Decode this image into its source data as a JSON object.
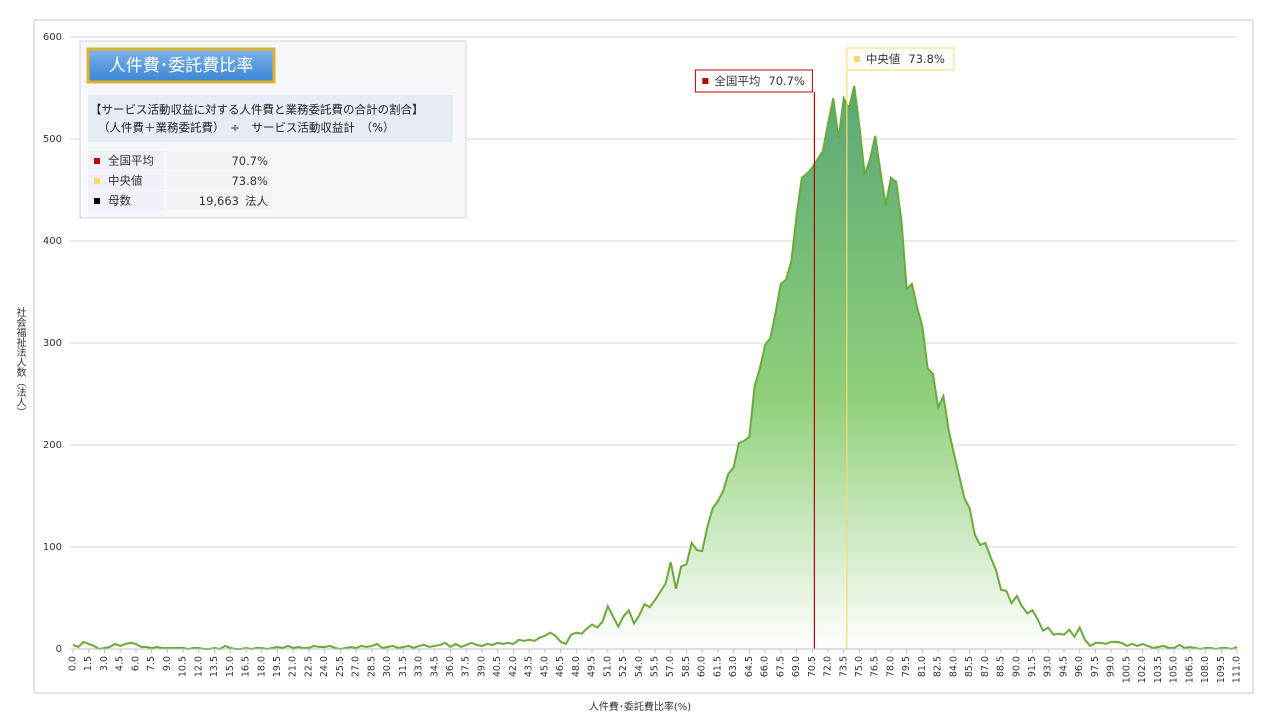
{
  "chart_data": {
    "type": "area",
    "xlabel": "人件費･委託費比率(%)",
    "ylabel": "社会福祉法人数（法人）",
    "color": "#6aaa3a",
    "grid": true,
    "xlim": [
      0,
      111
    ],
    "ylim": [
      0,
      600
    ],
    "yticks": [
      0,
      100,
      200,
      300,
      400,
      500,
      600
    ],
    "xticks": [
      {
        "value": 0,
        "label": "0.0"
      },
      1.5,
      {
        "value": 3,
        "label": "3.0"
      },
      4.5,
      {
        "value": 6,
        "label": "6.0"
      },
      7.5,
      {
        "value": 9,
        "label": "9.0"
      },
      10.5,
      {
        "value": 12,
        "label": "12.0"
      },
      13.5,
      {
        "value": 15,
        "label": "15.0"
      },
      16.5,
      {
        "value": 18,
        "label": "18.0"
      },
      19.5,
      {
        "value": 21,
        "label": "21.0"
      },
      22.5,
      {
        "value": 24,
        "label": "24.0"
      },
      25.5,
      {
        "value": 27,
        "label": "27.0"
      },
      28.5,
      {
        "value": 30,
        "label": "30.0"
      },
      31.5,
      {
        "value": 33,
        "label": "33.0"
      },
      34.5,
      {
        "value": 36,
        "label": "36.0"
      },
      37.5,
      {
        "value": 39,
        "label": "39.0"
      },
      40.5,
      {
        "value": 42,
        "label": "42.0"
      },
      43.5,
      {
        "value": 45,
        "label": "45.0"
      },
      46.5,
      {
        "value": 48,
        "label": "48.0"
      },
      49.5,
      {
        "value": 51,
        "label": "51.0"
      },
      52.5,
      {
        "value": 54,
        "label": "54.0"
      },
      55.5,
      {
        "value": 57,
        "label": "57.0"
      },
      58.5,
      {
        "value": 60,
        "label": "60.0"
      },
      61.5,
      {
        "value": 63,
        "label": "63.0"
      },
      64.5,
      {
        "value": 66,
        "label": "66.0"
      },
      67.5,
      {
        "value": 69,
        "label": "69.0"
      },
      70.5,
      {
        "value": 72,
        "label": "72.0"
      },
      73.5,
      {
        "value": 75,
        "label": "75.0"
      },
      76.5,
      {
        "value": 78,
        "label": "78.0"
      },
      79.5,
      {
        "value": 81,
        "label": "81.0"
      },
      82.5,
      {
        "value": 84,
        "label": "84.0"
      },
      85.5,
      {
        "value": 87,
        "label": "87.0"
      },
      88.5,
      {
        "value": 90,
        "label": "90.0"
      },
      91.5,
      {
        "value": 93,
        "label": "93.0"
      },
      94.5,
      {
        "value": 96,
        "label": "96.0"
      },
      97.5,
      {
        "value": 99,
        "label": "99.0"
      },
      100.5,
      {
        "value": 102,
        "label": "102.0"
      },
      103.5,
      {
        "value": 105,
        "label": "105.0"
      },
      106.5,
      {
        "value": 108,
        "label": "108.0"
      },
      109.5,
      {
        "value": 111,
        "label": "111.0"
      }
    ],
    "x": [
      0,
      0.5,
      1,
      1.5,
      2,
      2.5,
      3,
      3.5,
      4,
      4.5,
      5,
      5.5,
      6,
      6.5,
      7,
      7.5,
      8,
      8.5,
      9,
      9.5,
      10,
      10.5,
      11,
      11.5,
      12,
      12.5,
      13,
      13.5,
      14,
      14.5,
      15,
      15.5,
      16,
      16.5,
      17,
      17.5,
      18,
      18.5,
      19,
      19.5,
      20,
      20.5,
      21,
      21.5,
      22,
      22.5,
      23,
      23.5,
      24,
      24.5,
      25,
      25.5,
      26,
      26.5,
      27,
      27.5,
      28,
      28.5,
      29,
      29.5,
      30,
      30.5,
      31,
      31.5,
      32,
      32.5,
      33,
      33.5,
      34,
      34.5,
      35,
      35.5,
      36,
      36.5,
      37,
      37.5,
      38,
      38.5,
      39,
      39.5,
      40,
      40.5,
      41,
      41.5,
      42,
      42.5,
      43,
      43.5,
      44,
      44.5,
      45,
      45.5,
      46,
      46.5,
      47,
      47.5,
      48,
      48.5,
      49,
      49.5,
      50,
      50.5,
      51,
      51.5,
      52,
      52.5,
      53,
      53.5,
      54,
      54.5,
      55,
      55.5,
      56,
      56.5,
      57,
      57.5,
      58,
      58.5,
      59,
      59.5,
      60,
      60.5,
      61,
      61.5,
      62,
      62.5,
      63,
      63.5,
      64,
      64.5,
      65,
      65.5,
      66,
      66.5,
      67,
      67.5,
      68,
      68.5,
      69,
      69.5,
      70,
      70.5,
      71,
      71.5,
      72,
      72.5,
      73,
      73.5,
      74,
      74.5,
      75,
      75.5,
      76,
      76.5,
      77,
      77.5,
      78,
      78.5,
      79,
      79.5,
      80,
      80.5,
      81,
      81.5,
      82,
      82.5,
      83,
      83.5,
      84,
      84.5,
      85,
      85.5,
      86,
      86.5,
      87,
      87.5,
      88,
      88.5,
      89,
      89.5,
      90,
      90.5,
      91,
      91.5,
      92,
      92.5,
      93,
      93.5,
      94,
      94.5,
      95,
      95.5,
      96,
      96.5,
      97,
      97.5,
      98,
      98.5,
      99,
      99.5,
      100,
      100.5,
      101,
      101.5,
      102,
      102.5,
      103,
      103.5,
      104,
      104.5,
      105,
      105.5,
      106,
      106.5,
      107,
      107.5,
      108,
      108.5,
      109,
      109.5,
      110,
      110.5,
      111
    ],
    "values": [
      4,
      2,
      7,
      5,
      3,
      0,
      1,
      2,
      5,
      3,
      5,
      6,
      5,
      2,
      2,
      1,
      2,
      1,
      1,
      1,
      1,
      1,
      0,
      1,
      1,
      0,
      0,
      1,
      0,
      3,
      1,
      0,
      0,
      1,
      0,
      1,
      1,
      0,
      1,
      2,
      1,
      3,
      1,
      2,
      1,
      1,
      3,
      2,
      2,
      3,
      1,
      0,
      1,
      2,
      1,
      3,
      2,
      3,
      5,
      1,
      2,
      3,
      1,
      2,
      3,
      1,
      3,
      4,
      2,
      3,
      4,
      6,
      2,
      5,
      2,
      4,
      6,
      4,
      3,
      5,
      4,
      6,
      5,
      6,
      5,
      9,
      8,
      9,
      8,
      11,
      13,
      16,
      13,
      7,
      5,
      14,
      16,
      15,
      20,
      24,
      21,
      27,
      42,
      32,
      22,
      32,
      38,
      25,
      33,
      44,
      41,
      48,
      56,
      64,
      85,
      59,
      81,
      83,
      104,
      97,
      96,
      120,
      138,
      145,
      155,
      172,
      178,
      202,
      204,
      208,
      258,
      275,
      298,
      305,
      330,
      358,
      362,
      380,
      425,
      462,
      466,
      472,
      480,
      488,
      515,
      540,
      500,
      540,
      530,
      552,
      512,
      465,
      480,
      503,
      468,
      435,
      462,
      458,
      420,
      353,
      358,
      335,
      316,
      275,
      270,
      237,
      248,
      215,
      192,
      170,
      148,
      138,
      112,
      102,
      104,
      90,
      78,
      58,
      57,
      45,
      52,
      42,
      35,
      38,
      29,
      18,
      21,
      14,
      15,
      14,
      19,
      12,
      21,
      9,
      3,
      6,
      6,
      5,
      7,
      7,
      6,
      3,
      5,
      3,
      5,
      3,
      1,
      2,
      3,
      1,
      1,
      4,
      1,
      2,
      1,
      0,
      1,
      1,
      0,
      1,
      1,
      0,
      2
    ],
    "markers": [
      {
        "label": "全国平均",
        "value": 70.7,
        "value_label": "70.7%",
        "color": "#c00000"
      },
      {
        "label": "中央値",
        "value": 73.8,
        "value_label": "73.8%",
        "color": "#ffd966"
      }
    ],
    "info_box": {
      "title": "人件費･委託費比率",
      "description": [
        "【サービス活動収益に対する人件費と業務委託費の合計の割合】",
        "（人件費＋業務委託費）　÷　サービス活動収益計　（%）"
      ],
      "count_label": "母数",
      "count_value": "19,663",
      "count_unit": "法人",
      "count_color": "#000000"
    }
  }
}
